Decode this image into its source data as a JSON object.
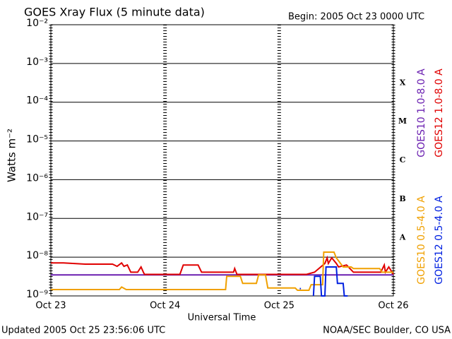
{
  "chart_data": {
    "type": "line",
    "title": "GOES Xray Flux (5 minute data)",
    "subtitle": "Begin:  2005 Oct 23 0000 UTC",
    "x_label": "Universal Time",
    "y_label": "Watts m⁻²",
    "footer_left": "Updated 2005 Oct 25 23:56:06 UTC",
    "footer_right": "NOAA/SEC Boulder, CO USA",
    "log_y": true,
    "grid": true,
    "xlim": [
      0,
      3
    ],
    "xticks": [
      {
        "value": 0,
        "label": "Oct 23"
      },
      {
        "value": 1,
        "label": "Oct 24"
      },
      {
        "value": 2,
        "label": "Oct 25"
      },
      {
        "value": 3,
        "label": "Oct 26"
      }
    ],
    "ylim": [
      1e-09,
      0.01
    ],
    "yticks": [
      {
        "value": 1e-09,
        "label": "10⁻⁹"
      },
      {
        "value": 1e-08,
        "label": "10⁻⁸"
      },
      {
        "value": 1e-07,
        "label": "10⁻⁷"
      },
      {
        "value": 1e-06,
        "label": "10⁻⁶"
      },
      {
        "value": 1e-05,
        "label": "10⁻⁵"
      },
      {
        "value": 0.0001,
        "label": "10⁻⁴"
      },
      {
        "value": 0.001,
        "label": "10⁻³"
      },
      {
        "value": 0.01,
        "label": "10⁻²"
      }
    ],
    "flare_classes": [
      "X",
      "M",
      "C",
      "B",
      "A"
    ],
    "series": [
      {
        "name": "GOES10 1.0-8.0 A",
        "color": "#6a1fb0",
        "x": [
          0,
          1.5,
          3
        ],
        "values": [
          3.5e-09,
          3.5e-09,
          3.5e-09
        ]
      },
      {
        "name": "GOES12 1.0-8.0 A",
        "color": "#e00000",
        "x": [
          0,
          0.11,
          0.3,
          0.54,
          0.58,
          0.62,
          0.64,
          0.67,
          0.7,
          0.76,
          0.79,
          0.81,
          0.82,
          1.13,
          1.16,
          1.29,
          1.32,
          1.6,
          1.61,
          1.63,
          2.24,
          2.31,
          2.4,
          2.42,
          2.43,
          2.46,
          2.5,
          2.52,
          2.59,
          2.65,
          2.89,
          2.92,
          2.93,
          2.96,
          3.0
        ],
        "values": [
          7.1e-09,
          7.1e-09,
          6.6e-09,
          6.6e-09,
          5.8e-09,
          7.1e-09,
          5.8e-09,
          6.3e-09,
          4.1e-09,
          4.1e-09,
          5.6e-09,
          4.1e-09,
          3.6e-09,
          3.6e-09,
          6.3e-09,
          6.3e-09,
          4.1e-09,
          4.1e-09,
          5.1e-09,
          3.6e-09,
          3.6e-09,
          4.1e-09,
          6.9e-09,
          9.6e-09,
          6.9e-09,
          9.6e-09,
          6.9e-09,
          5.6e-09,
          6.3e-09,
          4.1e-09,
          4.1e-09,
          6.3e-09,
          4.1e-09,
          5.6e-09,
          3.6e-09
        ]
      },
      {
        "name": "GOES10 0.5-4.0 A",
        "color": "#f0a000",
        "x": [
          0,
          0.6,
          0.62,
          0.66,
          1.53,
          1.54,
          1.66,
          1.68,
          1.8,
          1.82,
          1.88,
          1.9,
          2.14,
          2.16,
          2.26,
          2.28,
          2.38,
          2.39,
          2.48,
          2.5,
          2.56,
          2.63,
          2.65,
          2.88,
          2.9,
          3.0
        ],
        "values": [
          1.46e-09,
          1.46e-09,
          1.7e-09,
          1.46e-09,
          1.46e-09,
          3.2e-09,
          3.2e-09,
          2.1e-09,
          2.1e-09,
          3.5e-09,
          3.5e-09,
          1.6e-09,
          1.6e-09,
          1.4e-09,
          1.4e-09,
          1.95e-09,
          1.95e-09,
          1.35e-08,
          1.35e-08,
          9.6e-09,
          5.6e-09,
          5.6e-09,
          5.1e-09,
          5.1e-09,
          4.1e-09,
          4.1e-09
        ]
      },
      {
        "name": "GOES12 0.5-4.0 A",
        "color": "#0020e0",
        "x": [
          2.18,
          2.19,
          2.2,
          2.3,
          2.31,
          2.36,
          2.37,
          2.4,
          2.41,
          2.5,
          2.51,
          2.56,
          2.57,
          2.6
        ],
        "values": [
          1.55e-09,
          1.55e-09,
          null,
          1e-09,
          3.2e-09,
          3.2e-09,
          1e-09,
          1e-09,
          5.6e-09,
          5.6e-09,
          2.1e-09,
          2.1e-09,
          1e-09,
          1e-09
        ]
      }
    ]
  }
}
